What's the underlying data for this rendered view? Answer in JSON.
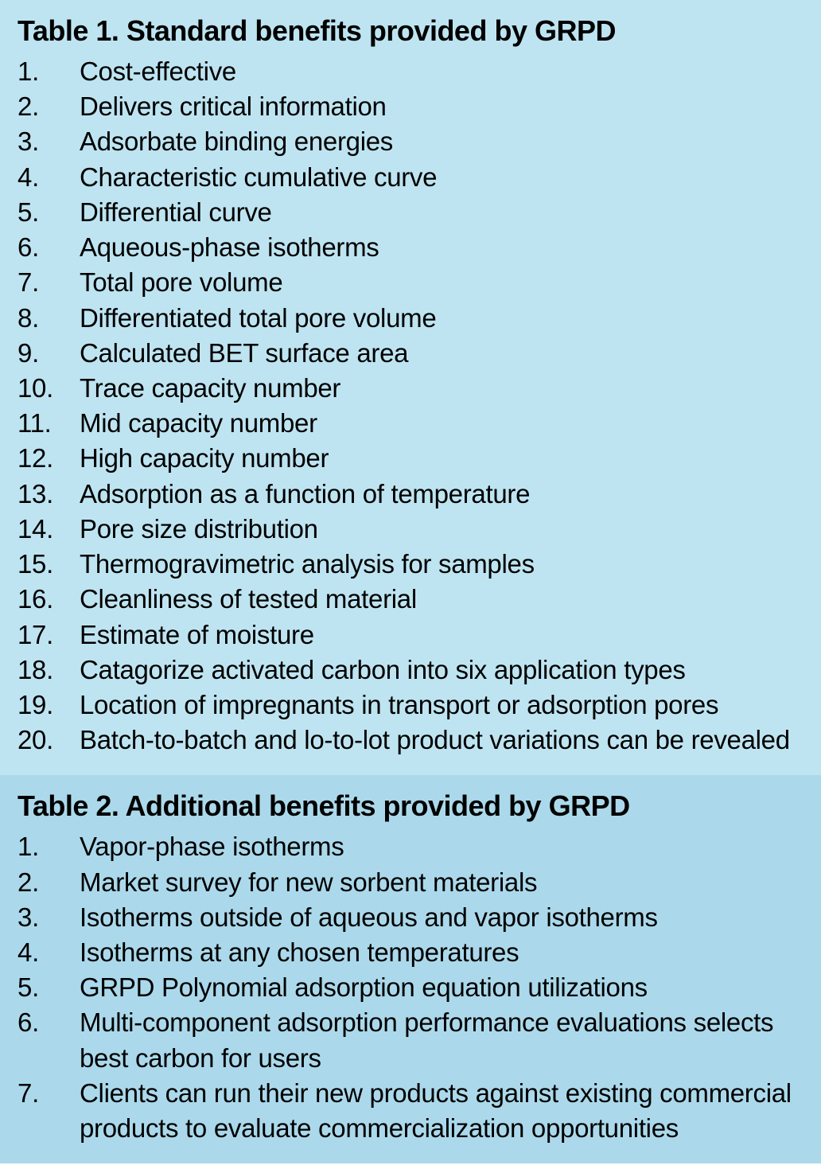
{
  "table1": {
    "title": "Table 1. Standard benefits provided by GRPD",
    "background_color": "#bee4f1",
    "title_fontsize": 36,
    "title_fontweight": 900,
    "title_color": "#000000",
    "item_fontsize": 33,
    "item_color": "#000000",
    "items": [
      "Cost-effective",
      "Delivers critical information",
      "Adsorbate binding energies",
      "Characteristic cumulative curve",
      "Differential curve",
      "Aqueous-phase isotherms",
      "Total pore volume",
      "Differentiated total pore volume",
      "Calculated BET surface area",
      "Trace capacity number",
      "Mid capacity number",
      "High capacity number",
      "Adsorption as a function of temperature",
      "Pore size distribution",
      "Thermogravimetric analysis for samples",
      "Cleanliness of tested material",
      "Estimate of moisture",
      "Catagorize activated carbon into six application types",
      "Location of impregnants in transport or adsorption pores",
      "Batch-to-batch and lo-to-lot product variations can be revealed"
    ]
  },
  "table2": {
    "title": "Table 2. Additional benefits provided by GRPD",
    "background_color": "#abd9eb",
    "title_fontsize": 36,
    "title_fontweight": 900,
    "title_color": "#000000",
    "item_fontsize": 33,
    "item_color": "#000000",
    "items": [
      "Vapor-phase isotherms",
      "Market survey for new sorbent materials",
      "Isotherms outside of aqueous and vapor isotherms",
      "Isotherms at any chosen temperatures",
      "GRPD Polynomial adsorption equation utilizations",
      "Multi-component adsorption performance evaluations selects best carbon for users",
      "Clients can run their new products against existing commercial products to evaluate commercialization opportunities"
    ]
  }
}
